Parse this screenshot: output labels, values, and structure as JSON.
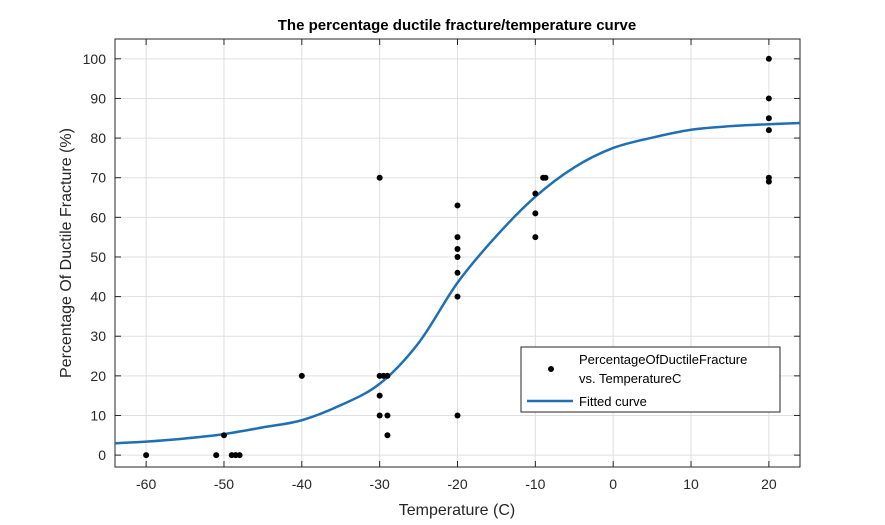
{
  "chart_data": {
    "type": "scatter",
    "title": "The percentage ductile fracture/temperature curve",
    "xlabel": "Temperature (C)",
    "ylabel": "Percentage Of Ductile Fracture (%)",
    "xlim": [
      -64,
      24
    ],
    "ylim": [
      -3,
      105
    ],
    "x_ticks": [
      -60,
      -50,
      -40,
      -30,
      -20,
      -10,
      0,
      10,
      20
    ],
    "y_ticks": [
      0,
      10,
      20,
      30,
      40,
      50,
      60,
      70,
      80,
      90,
      100
    ],
    "grid": true,
    "legend_position": "bottom-right",
    "colors": {
      "points": "#000000",
      "curve": "#1f6fb4",
      "grid": "#dfdfdf",
      "axes": "#262626"
    },
    "series": [
      {
        "name_lines": [
          "PercentageOfDuctileFracture",
          "vs. TemperatureC"
        ],
        "kind": "scatter",
        "points": [
          [
            -60,
            0
          ],
          [
            -51,
            0
          ],
          [
            -50,
            5
          ],
          [
            -49,
            0
          ],
          [
            -48.5,
            0
          ],
          [
            -48,
            0
          ],
          [
            -40,
            20
          ],
          [
            -30,
            70
          ],
          [
            -30,
            20
          ],
          [
            -29.5,
            20
          ],
          [
            -29,
            20
          ],
          [
            -30,
            15
          ],
          [
            -30,
            10
          ],
          [
            -29,
            10
          ],
          [
            -29,
            5
          ],
          [
            -20,
            63
          ],
          [
            -20,
            55
          ],
          [
            -20,
            52
          ],
          [
            -20,
            50
          ],
          [
            -20,
            46
          ],
          [
            -20,
            40
          ],
          [
            -20,
            10
          ],
          [
            -10,
            66
          ],
          [
            -10,
            61
          ],
          [
            -10,
            55
          ],
          [
            -9,
            70
          ],
          [
            -8.7,
            70
          ],
          [
            20,
            100
          ],
          [
            20,
            90
          ],
          [
            20,
            85
          ],
          [
            20,
            82
          ],
          [
            20,
            70
          ],
          [
            20,
            69
          ]
        ]
      },
      {
        "name": "Fitted curve",
        "kind": "line",
        "points": [
          [
            -64,
            3.0
          ],
          [
            -60,
            3.4
          ],
          [
            -55,
            4.2
          ],
          [
            -50,
            5.3
          ],
          [
            -45,
            7.0
          ],
          [
            -40,
            8.8
          ],
          [
            -35,
            12.6
          ],
          [
            -30,
            18.0
          ],
          [
            -25,
            28.3
          ],
          [
            -20,
            43.5
          ],
          [
            -15,
            55.3
          ],
          [
            -10,
            65.2
          ],
          [
            -5,
            72.6
          ],
          [
            0,
            77.5
          ],
          [
            5,
            80.1
          ],
          [
            10,
            82.1
          ],
          [
            15,
            83.0
          ],
          [
            20,
            83.5
          ],
          [
            24,
            83.8
          ]
        ]
      }
    ]
  }
}
